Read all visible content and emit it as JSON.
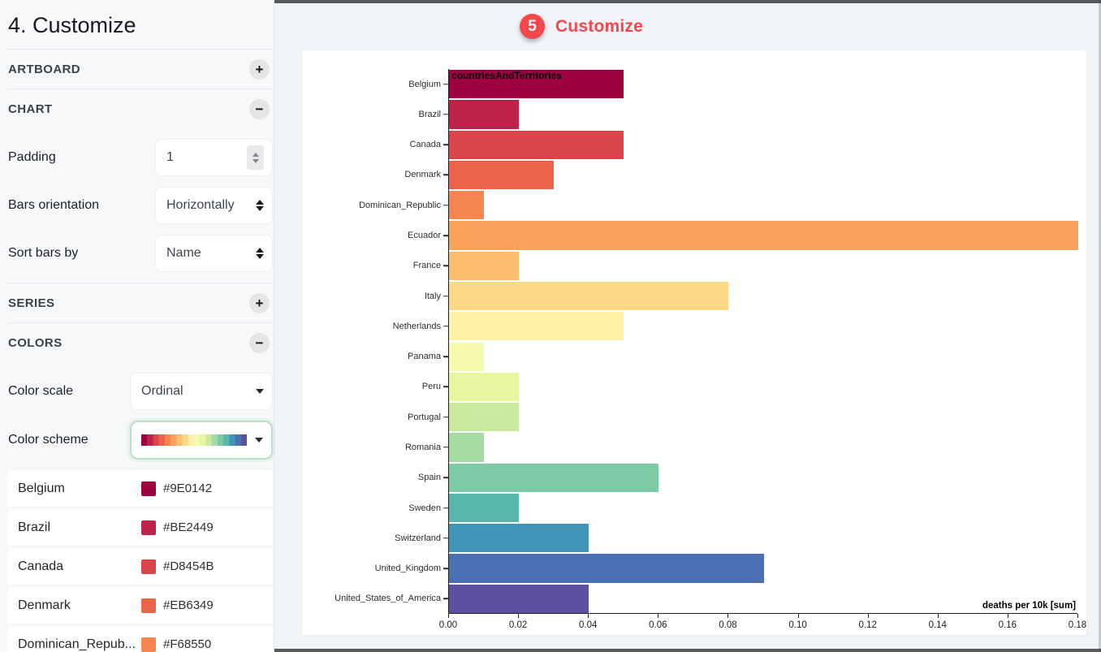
{
  "page_title": "4. Customize",
  "annotation": {
    "number": "5",
    "label": "Customize",
    "color": "#f2484e"
  },
  "sidebar": {
    "artboard_label": "ARTBOARD",
    "artboard_toggle": "+",
    "chart_label": "CHART",
    "chart_toggle": "−",
    "series_label": "SERIES",
    "series_toggle": "+",
    "colors_label": "COLORS",
    "colors_toggle": "−",
    "padding_label": "Padding",
    "padding_value": "1",
    "bars_orientation_label": "Bars orientation",
    "bars_orientation_value": "Horizontally",
    "sort_label": "Sort bars by",
    "sort_value": "Name",
    "color_scale_label": "Color scale",
    "color_scale_value": "Ordinal",
    "color_scheme_label": "Color scheme",
    "scheme_swatch": [
      "#9E0142",
      "#BE2449",
      "#D8454B",
      "#EB6349",
      "#F68550",
      "#FAA35D",
      "#FDBE6E",
      "#FDD985",
      "#FEF0A6",
      "#F5FAAF",
      "#EAF69F",
      "#CBE99D",
      "#A7DBA4",
      "#7CCBA4",
      "#58B8AB",
      "#4193B7",
      "#4A70B1",
      "#5E50A1"
    ],
    "color_assignments": [
      {
        "name": "Belgium",
        "hex": "#9E0142"
      },
      {
        "name": "Brazil",
        "hex": "#BE2449"
      },
      {
        "name": "Canada",
        "hex": "#D8454B"
      },
      {
        "name": "Denmark",
        "hex": "#EB6349"
      },
      {
        "name": "Dominican_Repub...",
        "hex": "#F68550"
      }
    ]
  },
  "chart_data": {
    "type": "bar",
    "orientation": "horizontal",
    "title": "countriesAndTerritories",
    "xlabel": "deaths per 10k [sum]",
    "xlim": [
      0,
      0.18
    ],
    "x_tick_labels": [
      "0.00",
      "0.02",
      "0.04",
      "0.06",
      "0.08",
      "0.10",
      "0.12",
      "0.14",
      "0.16",
      "0.18"
    ],
    "grid": false,
    "legend": false,
    "categories": [
      "Belgium",
      "Brazil",
      "Canada",
      "Denmark",
      "Dominican_Republic",
      "Ecuador",
      "France",
      "Italy",
      "Netherlands",
      "Panama",
      "Peru",
      "Portugal",
      "Romania",
      "Spain",
      "Sweden",
      "Switzerland",
      "United_Kingdom",
      "United_States_of_America"
    ],
    "values": [
      0.05,
      0.02,
      0.05,
      0.03,
      0.01,
      0.18,
      0.02,
      0.08,
      0.05,
      0.01,
      0.02,
      0.02,
      0.01,
      0.06,
      0.02,
      0.04,
      0.09,
      0.04
    ],
    "colors": [
      "#9E0142",
      "#BE2449",
      "#D8454B",
      "#EB6349",
      "#F68550",
      "#FAA35D",
      "#FDBE6E",
      "#FDD985",
      "#FEF0A6",
      "#F5FAAF",
      "#EAF69F",
      "#CBE99D",
      "#A7DBA4",
      "#7CCBA4",
      "#58B8AB",
      "#4193B7",
      "#4A70B1",
      "#5E50A1"
    ]
  }
}
